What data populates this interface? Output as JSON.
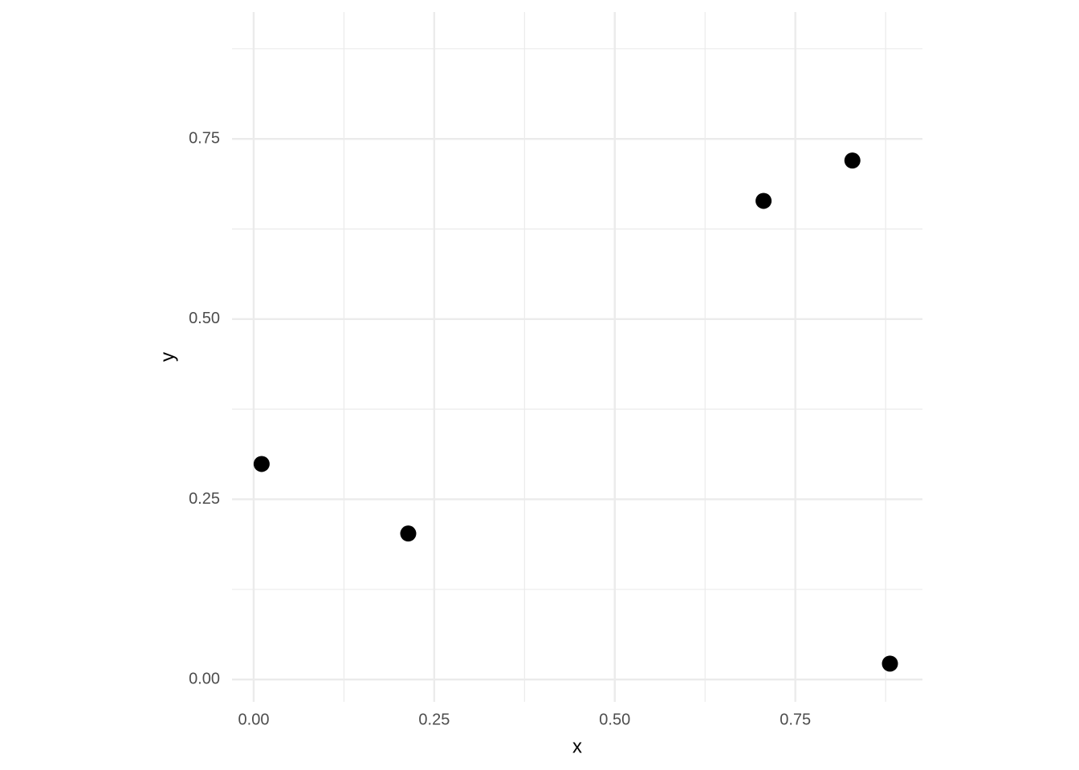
{
  "chart_data": {
    "type": "scatter",
    "x_label": "x",
    "y_label": "y",
    "x": [
      0.011,
      0.214,
      0.706,
      0.829,
      0.881
    ],
    "values": [
      0.299,
      0.2025,
      0.664,
      0.72,
      0.022
    ],
    "color": "#000000",
    "xlim": [
      -0.03,
      0.926
    ],
    "ylim": [
      -0.031,
      0.926
    ],
    "xticks": [
      {
        "value": 0,
        "label": "0.00"
      },
      0.25,
      {
        "value": 0.5,
        "label": "0.50"
      },
      0.75
    ],
    "yticks": [
      {
        "value": 0,
        "label": "0.00"
      },
      0.25,
      {
        "value": 0.5,
        "label": "0.50"
      },
      0.75
    ],
    "minor_xticks": [
      0.125,
      0.375,
      0.625,
      0.875
    ],
    "minor_yticks": [
      0.125,
      0.375,
      0.625,
      0.875
    ],
    "grid": true
  }
}
